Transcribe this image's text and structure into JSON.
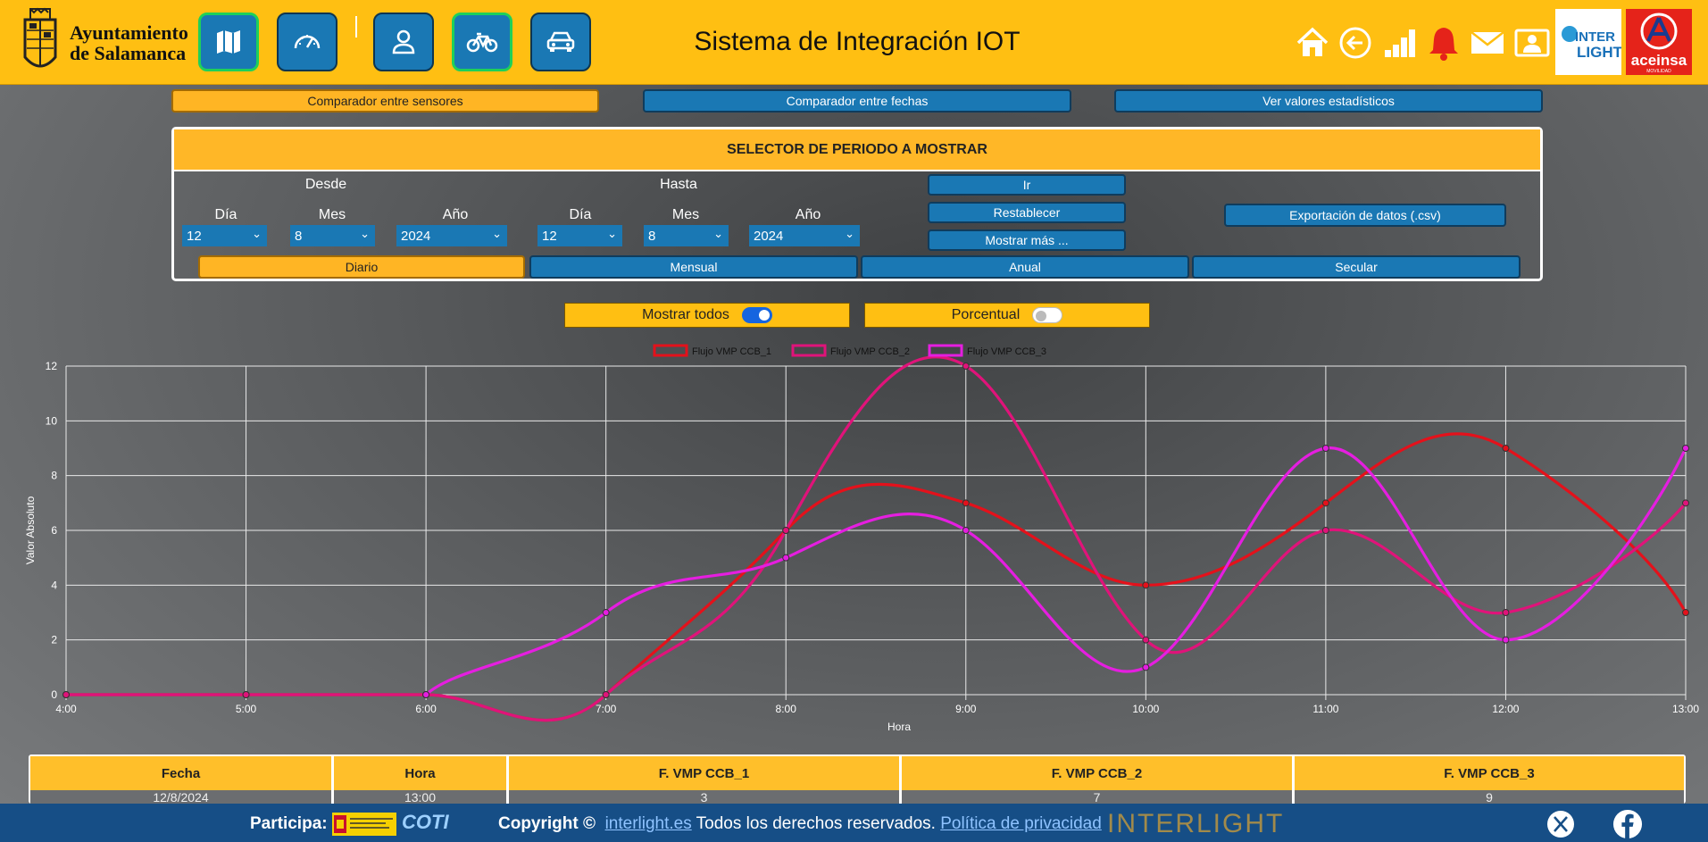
{
  "header": {
    "logo_line1": "Ayuntamiento",
    "logo_line2": "de Salamanca",
    "title": "Sistema de Integración IOT",
    "nav_buttons": [
      {
        "icon": "map-icon"
      },
      {
        "icon": "speedometer-icon"
      },
      {
        "icon": "person-icon"
      },
      {
        "icon": "bicycle-icon"
      },
      {
        "icon": "car-icon"
      }
    ],
    "right_icons": [
      "home-icon",
      "back-icon",
      "bar-chart-icon",
      "bell-icon",
      "mail-icon",
      "contact-card-icon"
    ],
    "interlight_logo_text": "INTERLIGHT",
    "aceinsa_logo_text": "aceinsa",
    "colors": {
      "bar": "#ffbf12",
      "button": "#1a78b4",
      "active_border": "#1ed05a",
      "bell": "#e5231a"
    }
  },
  "tabs": [
    {
      "label": "Comparador entre sensores",
      "active": true
    },
    {
      "label": "Comparador entre fechas",
      "active": false
    },
    {
      "label": "Ver valores estadísticos",
      "active": false
    }
  ],
  "selector": {
    "title": "SELECTOR DE PERIODO A MOSTRAR",
    "desde_label": "Desde",
    "hasta_label": "Hasta",
    "dia_label": "Día",
    "mes_label": "Mes",
    "anio_label": "Año",
    "desde": {
      "dia": "12",
      "mes": "8",
      "anio": "2024"
    },
    "hasta": {
      "dia": "12",
      "mes": "8",
      "anio": "2024"
    },
    "ir_label": "Ir",
    "restablecer_label": "Restablecer",
    "mostrar_mas_label": "Mostrar más ...",
    "export_label": "Exportación de datos (.csv)",
    "periods": [
      {
        "label": "Diario",
        "active": true
      },
      {
        "label": "Mensual",
        "active": false
      },
      {
        "label": "Anual",
        "active": false
      },
      {
        "label": "Secular",
        "active": false
      }
    ]
  },
  "toggles": {
    "mostrar_todos_label": "Mostrar todos",
    "mostrar_todos_on": true,
    "porcentual_label": "Porcentual",
    "porcentual_on": false
  },
  "chart_data": {
    "type": "line",
    "xlabel": "Hora",
    "ylabel": "Valor Absoluto",
    "ylim": [
      0,
      12
    ],
    "yticks": [
      0,
      2,
      4,
      6,
      8,
      10,
      12
    ],
    "categories": [
      "4:00",
      "5:00",
      "6:00",
      "7:00",
      "8:00",
      "9:00",
      "10:00",
      "11:00",
      "12:00",
      "13:00"
    ],
    "grid": true,
    "legend": "top-center",
    "series": [
      {
        "name": "Flujo VMP CCB_1",
        "color": "#e4111b",
        "values": [
          0,
          0,
          0,
          0,
          6,
          7,
          4,
          7,
          9,
          3
        ]
      },
      {
        "name": "Flujo VMP CCB_2",
        "color": "#e0137a",
        "values": [
          0,
          0,
          0,
          0,
          6,
          12,
          2,
          6,
          3,
          7
        ]
      },
      {
        "name": "Flujo VMP CCB_3",
        "color": "#e51ee0",
        "values": [
          null,
          null,
          0,
          3,
          5,
          6,
          1,
          9,
          2,
          9
        ]
      }
    ]
  },
  "table": {
    "headers": [
      "Fecha",
      "Hora",
      "F. VMP CCB_1",
      "F. VMP CCB_2",
      "F. VMP CCB_3"
    ],
    "first_row": [
      "12/8/2024",
      "13:00",
      "3",
      "7",
      "9"
    ]
  },
  "footer": {
    "participa_label": "Participa:",
    "copyright_label": "Copyright ©",
    "site_link": "interlight.es",
    "rights_text": "Todos los derechos reservados.",
    "privacy_link": "Política de privacidad",
    "coti_text": "COTI",
    "interlight_text": "INTERLIGHT",
    "social_icons": [
      "x-twitter-icon",
      "facebook-icon"
    ]
  }
}
